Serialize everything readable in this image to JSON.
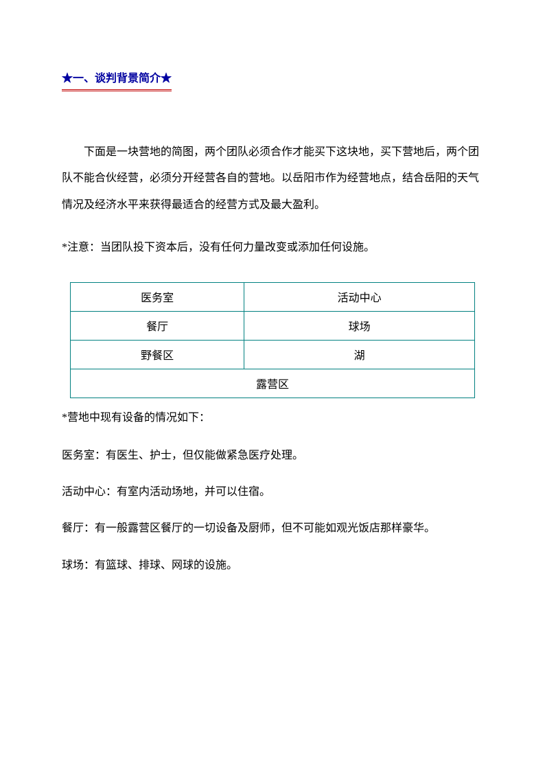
{
  "colors": {
    "title_color": "#0000a0",
    "title_underline": "#c00000",
    "text_color": "#000000",
    "table_border": "#008080"
  },
  "section_title": "★一、谈判背景简介★",
  "intro": "下面是一块营地的简图，两个团队必须合作才能买下这块地，买下营地后，两个团队不能合伙经营，必须分开经营各自的营地。以岳阳市作为经营地点，结合岳阳的天气情况及经济水平来获得最适合的经营方式及最大盈利。",
  "note": "*注意：当团队投下资本后，没有任何力量改变或添加任何设施。",
  "table": {
    "rows": [
      [
        "医务室",
        "活动中心"
      ],
      [
        "餐厅",
        "球场"
      ],
      [
        "野餐区",
        "湖"
      ]
    ],
    "bottom_row": "露营区"
  },
  "equipment_intro": "*营地中现有设备的情况如下：",
  "equipment": [
    "医务室：有医生、护士，但仅能做紧急医疗处理。",
    "活动中心：有室内活动场地，并可以住宿。",
    "餐厅：有一般露营区餐厅的一切设备及厨师，但不可能如观光饭店那样豪华。",
    "球场：有篮球、排球、网球的设施。"
  ]
}
